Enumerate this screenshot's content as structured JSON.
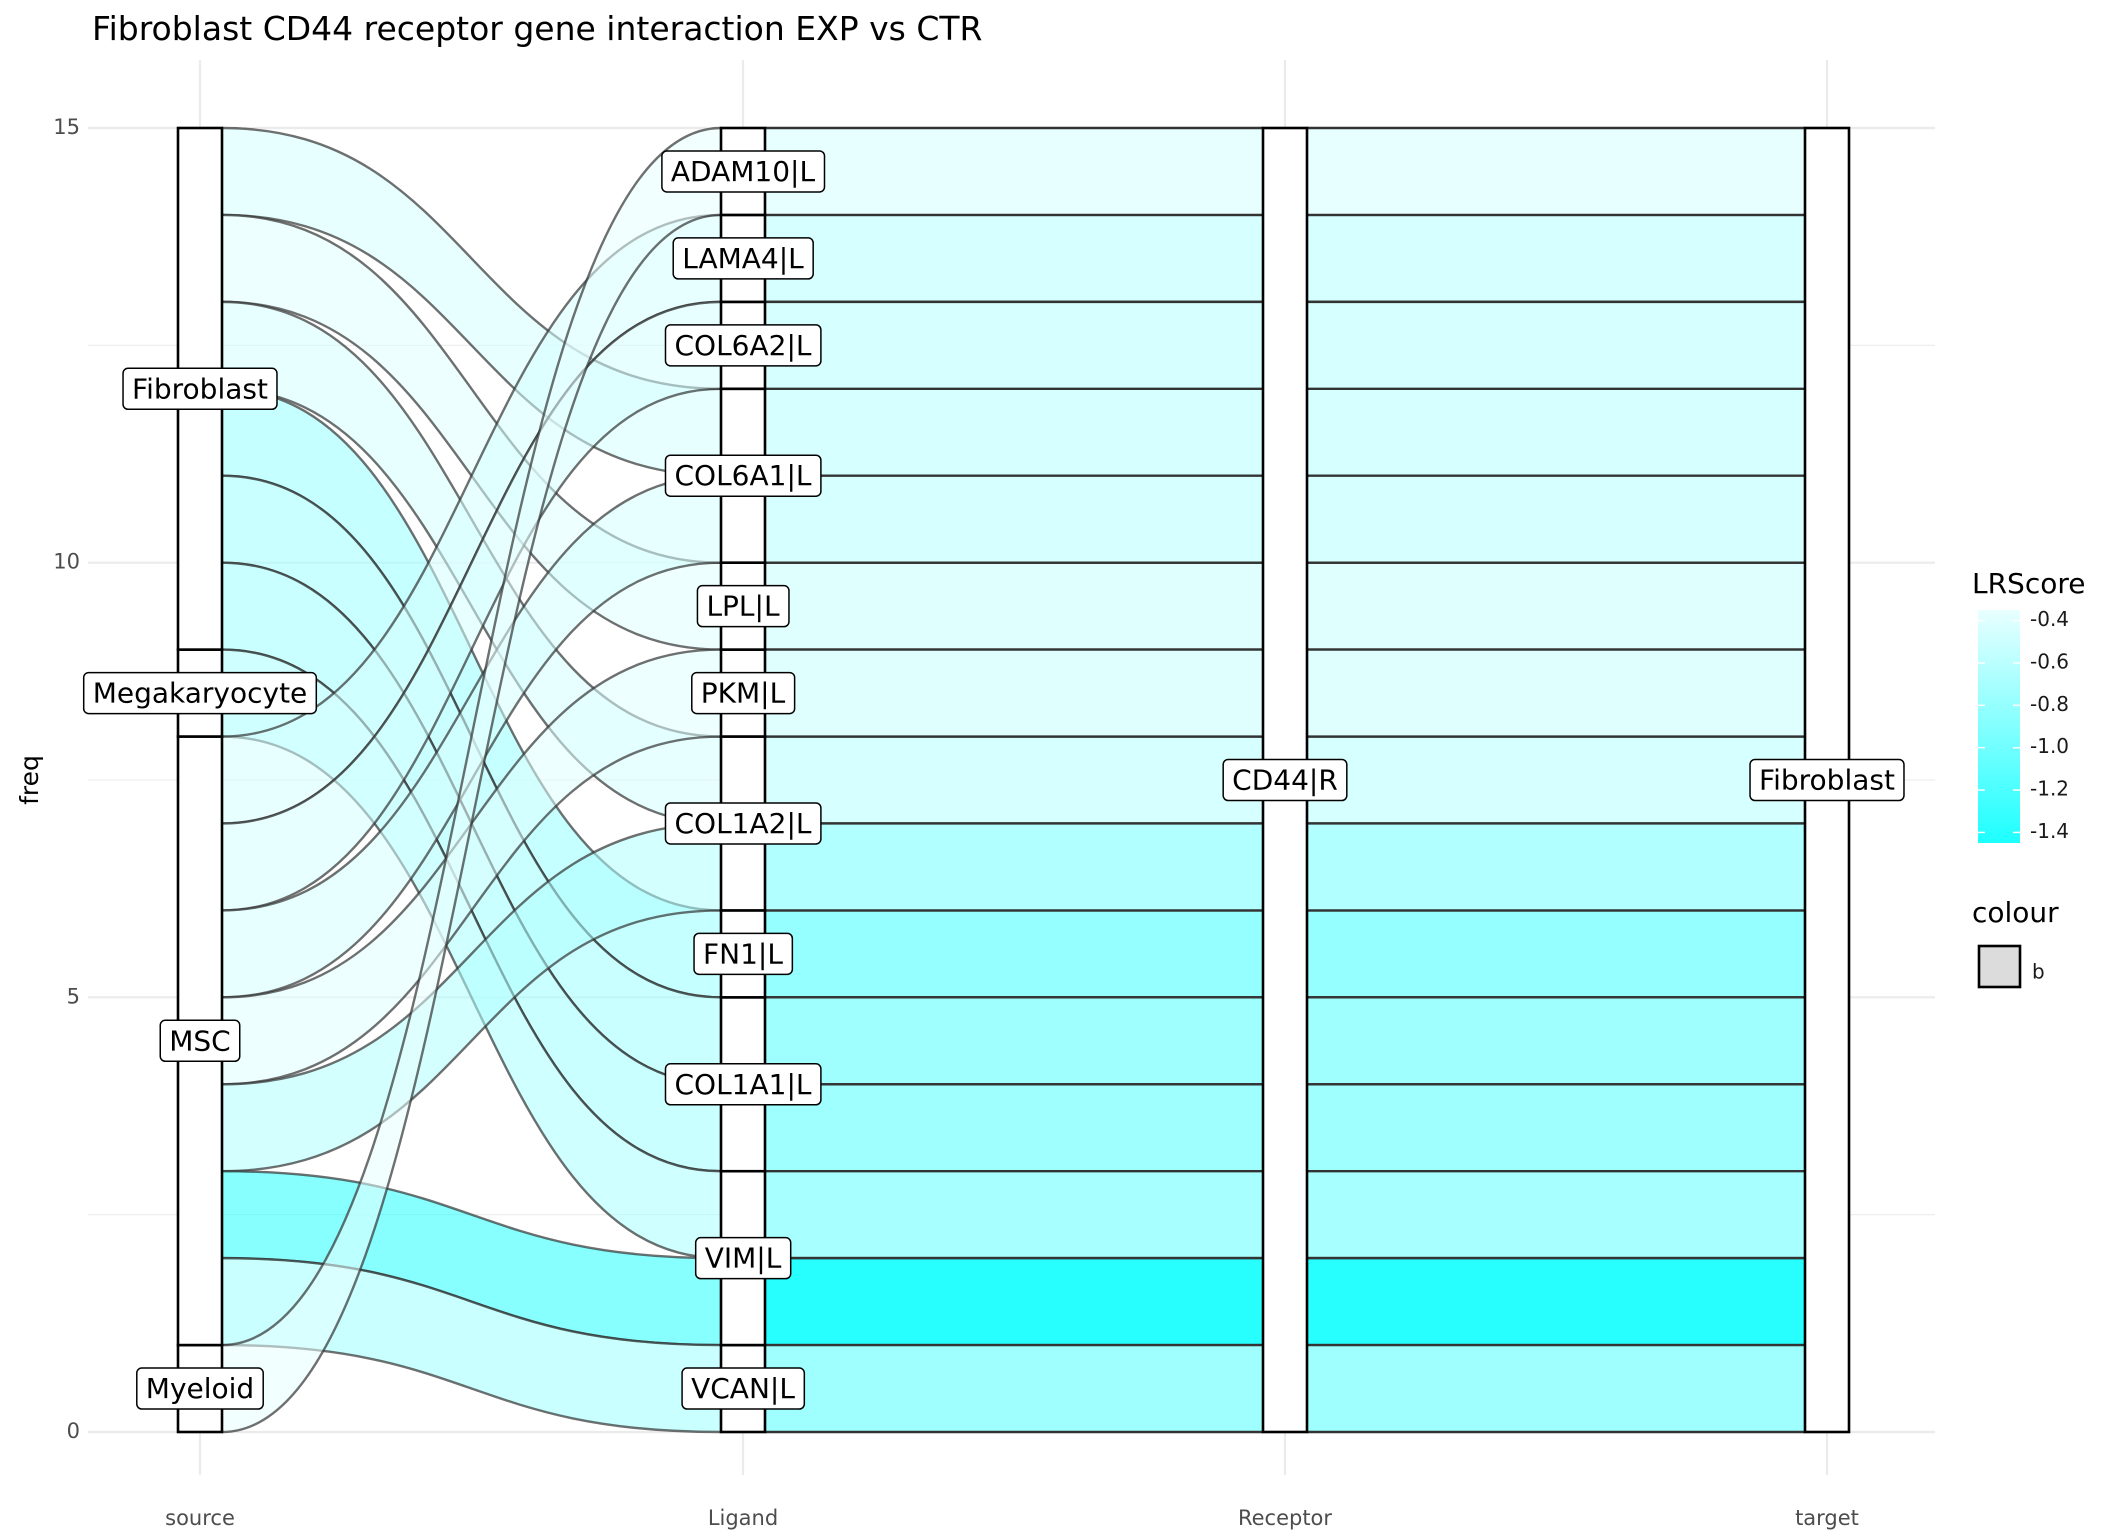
{
  "chart_data": {
    "type": "alluvial",
    "title": "Fibroblast CD44 receptor gene interaction EXP vs CTR",
    "xlabel": "",
    "ylabel": "freq",
    "ylim": [
      0,
      15
    ],
    "y_ticks": [
      0,
      5,
      10,
      15
    ],
    "axes": [
      "source",
      "Ligand",
      "Receptor",
      "target"
    ],
    "grid": true,
    "strata": {
      "source": [
        {
          "label": "Myeloid",
          "lo": 0,
          "hi": 1
        },
        {
          "label": "MSC",
          "lo": 1,
          "hi": 8
        },
        {
          "label": "Megakaryocyte",
          "lo": 8,
          "hi": 9
        },
        {
          "label": "Fibroblast",
          "lo": 9,
          "hi": 15
        }
      ],
      "Ligand": [
        {
          "label": "VCAN|L",
          "lo": 0,
          "hi": 1
        },
        {
          "label": "VIM|L",
          "lo": 1,
          "hi": 3
        },
        {
          "label": "COL1A1|L",
          "lo": 3,
          "hi": 5
        },
        {
          "label": "FN1|L",
          "lo": 5,
          "hi": 6
        },
        {
          "label": "COL1A2|L",
          "lo": 6,
          "hi": 8
        },
        {
          "label": "PKM|L",
          "lo": 8,
          "hi": 9
        },
        {
          "label": "LPL|L",
          "lo": 9,
          "hi": 10
        },
        {
          "label": "COL6A1|L",
          "lo": 10,
          "hi": 12
        },
        {
          "label": "COL6A2|L",
          "lo": 12,
          "hi": 13
        },
        {
          "label": "LAMA4|L",
          "lo": 13,
          "hi": 14
        },
        {
          "label": "ADAM10|L",
          "lo": 14,
          "hi": 15
        }
      ],
      "Receptor": [
        {
          "label": "CD44|R",
          "lo": 0,
          "hi": 15
        }
      ],
      "target": [
        {
          "label": "Fibroblast",
          "lo": 0,
          "hi": 15
        }
      ]
    },
    "flows": [
      {
        "src": [
          14,
          15
        ],
        "lig": [
          11,
          12
        ],
        "score": -0.45
      },
      {
        "src": [
          13,
          14
        ],
        "lig": [
          9,
          10
        ],
        "score": -0.4
      },
      {
        "src": [
          12,
          13
        ],
        "lig": [
          7,
          8
        ],
        "score": -0.45
      },
      {
        "src": [
          11,
          12
        ],
        "lig": [
          5,
          6
        ],
        "score": -0.8
      },
      {
        "src": [
          10,
          11
        ],
        "lig": [
          4,
          5
        ],
        "score": -0.75
      },
      {
        "src": [
          9,
          10
        ],
        "lig": [
          3,
          4
        ],
        "score": -0.75
      },
      {
        "src": [
          8,
          9
        ],
        "lig": [
          2,
          3
        ],
        "score": -0.7
      },
      {
        "src": [
          7,
          8
        ],
        "lig": [
          13,
          14
        ],
        "score": -0.45
      },
      {
        "src": [
          6,
          7
        ],
        "lig": [
          12,
          13
        ],
        "score": -0.45
      },
      {
        "src": [
          5,
          6
        ],
        "lig": [
          10,
          11
        ],
        "score": -0.45
      },
      {
        "src": [
          4,
          5
        ],
        "lig": [
          8,
          9
        ],
        "score": -0.4
      },
      {
        "src": [
          3,
          4
        ],
        "lig": [
          6,
          7
        ],
        "score": -0.65
      },
      {
        "src": [
          2,
          3
        ],
        "lig": [
          1,
          2
        ],
        "score": -1.4
      },
      {
        "src": [
          1,
          2
        ],
        "lig": [
          0,
          1
        ],
        "score": -0.75
      },
      {
        "src": [
          0,
          1
        ],
        "lig": [
          14,
          15
        ],
        "score": -0.35
      }
    ],
    "legend": {
      "fill_title": "LRScore",
      "fill_ticks": [
        -0.4,
        -0.6,
        -0.8,
        -1.0,
        -1.2,
        -1.4
      ],
      "fill_tick_labels": [
        "-0.4",
        "-0.6",
        "-0.8",
        "-1.0",
        "-1.2",
        "-1.4"
      ],
      "fill_range": [
        -1.45,
        -0.35
      ],
      "fill_low_color": "#1effff",
      "fill_high_color": "#e8ffff",
      "colour_title": "colour",
      "colour_entry": "b",
      "colour_swatch": "#dcdcdc",
      "placement": "right"
    },
    "colors": {
      "stratum_fill": "#ffffff",
      "stratum_border": "#000000",
      "flow_border": "#333333",
      "grid": "#ebebeb"
    }
  }
}
